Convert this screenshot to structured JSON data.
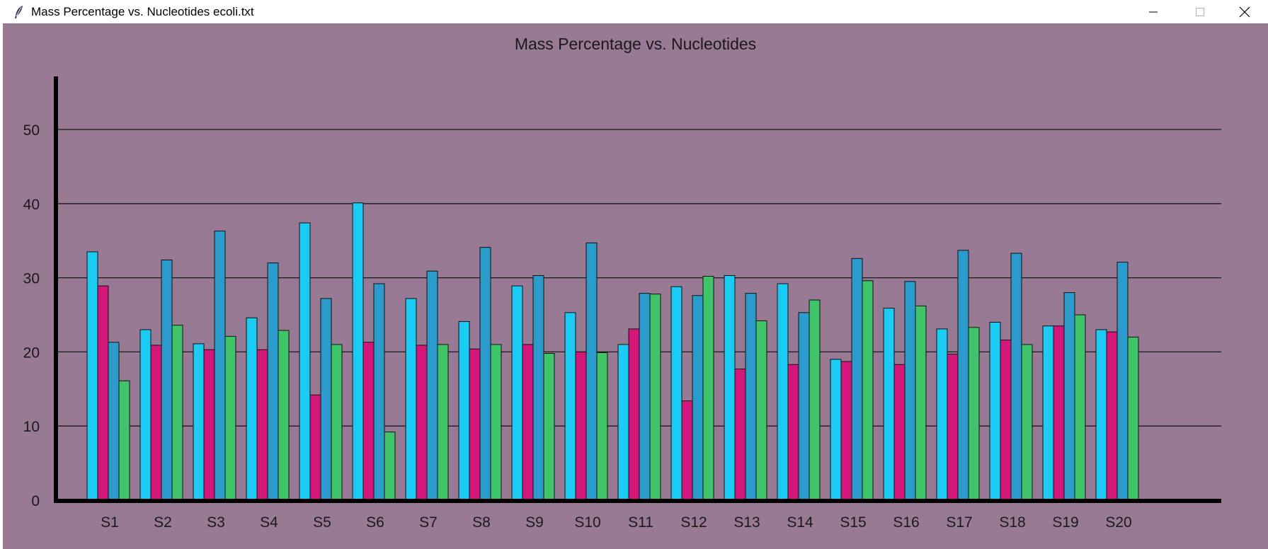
{
  "window": {
    "title": "Mass Percentage vs. Nucleotides ecoli.txt",
    "icon": "feather-icon",
    "controls": [
      "minimize-icon",
      "maximize-icon",
      "close-icon"
    ]
  },
  "chart_data": {
    "type": "bar",
    "title": "Mass Percentage vs. Nucleotides",
    "xlabel": "",
    "ylabel": "",
    "ylim": [
      0,
      57
    ],
    "yticks": [
      0,
      10,
      20,
      30,
      40,
      50
    ],
    "grid": true,
    "legend": "none",
    "colors": [
      "#1ccbf4",
      "#d4177a",
      "#2a9bcb",
      "#3fc46a"
    ],
    "background": "#997a94",
    "categories": [
      "S1",
      "S2",
      "S3",
      "S4",
      "S5",
      "S6",
      "S7",
      "S8",
      "S9",
      "S10",
      "S11",
      "S12",
      "S13",
      "S14",
      "S15",
      "S16",
      "S17",
      "S18",
      "S19",
      "S20"
    ],
    "series": [
      {
        "values": [
          33.5,
          23.0,
          21.1,
          24.6,
          37.4,
          40.1,
          27.2,
          24.1,
          28.9,
          25.3,
          21.0,
          28.8,
          30.3,
          29.2,
          19.0,
          25.9,
          23.1,
          24.0,
          23.5,
          23.0
        ]
      },
      {
        "values": [
          28.9,
          20.9,
          20.3,
          20.3,
          14.2,
          21.3,
          20.9,
          20.4,
          21.0,
          20.0,
          23.1,
          13.4,
          17.7,
          18.3,
          18.7,
          18.3,
          19.7,
          21.6,
          23.5,
          22.7
        ]
      },
      {
        "values": [
          21.3,
          32.4,
          36.3,
          32.0,
          27.2,
          29.2,
          30.9,
          34.1,
          30.3,
          34.7,
          27.9,
          27.6,
          27.9,
          25.3,
          32.6,
          29.5,
          33.7,
          33.3,
          28.0,
          32.1
        ]
      },
      {
        "values": [
          16.1,
          23.6,
          22.1,
          22.9,
          21.0,
          9.2,
          21.0,
          21.0,
          19.8,
          19.9,
          27.8,
          30.2,
          24.2,
          27.0,
          29.6,
          26.2,
          23.3,
          21.0,
          25.0,
          22.0
        ]
      }
    ]
  }
}
